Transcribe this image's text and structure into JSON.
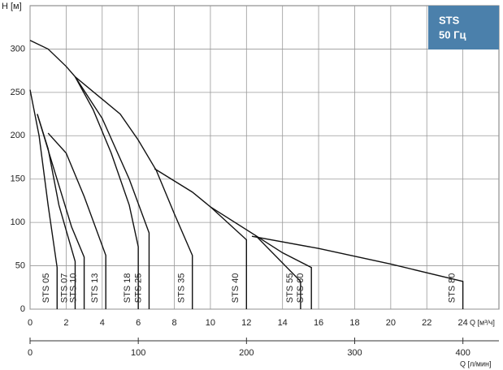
{
  "chart_data": {
    "type": "line",
    "y_label": "H [м]",
    "x_label": "Q [м³/ч]",
    "x2_label": "Q [л/мин]",
    "badge": [
      "STS",
      "50 Гц"
    ],
    "badge_color": "#4b80ab",
    "grid": true,
    "xlim": [
      0,
      26
    ],
    "xticks": [
      0,
      2,
      4,
      6,
      8,
      10,
      12,
      14,
      16,
      18,
      20,
      22,
      24
    ],
    "ylim": [
      0,
      350
    ],
    "yticks": [
      0,
      50,
      100,
      150,
      200,
      250,
      300
    ],
    "x2lim": [
      0,
      433.3
    ],
    "x2ticks": [
      0,
      100,
      200,
      300,
      400
    ],
    "series": [
      {
        "name": "STS 05",
        "color": "#111111",
        "x": [
          0,
          0.5,
          1.0,
          1.5,
          1.5
        ],
        "values": [
          253,
          200,
          120,
          48,
          0
        ]
      },
      {
        "name": "STS 07",
        "color": "#111111",
        "x": [
          0.4,
          1.0,
          1.6,
          2.5,
          2.5
        ],
        "values": [
          225,
          185,
          120,
          55,
          0
        ]
      },
      {
        "name": "STS 10",
        "color": "#111111",
        "x": [
          0.4,
          1.2,
          2.3,
          3.0,
          3.0
        ],
        "values": [
          225,
          170,
          95,
          60,
          0
        ]
      },
      {
        "name": "STS 13",
        "color": "#111111",
        "x": [
          1.0,
          2.0,
          3.0,
          4.2,
          4.2
        ],
        "values": [
          203,
          180,
          130,
          62,
          0
        ]
      },
      {
        "name": "STS 18",
        "color": "#111111",
        "x": [
          2.5,
          3.5,
          4.5,
          5.5,
          6.0,
          6.0
        ],
        "values": [
          268,
          230,
          180,
          120,
          72,
          0
        ]
      },
      {
        "name": "STS 25",
        "color": "#111111",
        "x": [
          2.5,
          4.0,
          5.5,
          6.6,
          6.6
        ],
        "values": [
          268,
          220,
          150,
          88,
          0
        ]
      },
      {
        "name": "STS 35",
        "color": "#111111",
        "x": [
          0,
          1.0,
          2.0,
          2.5,
          5.0,
          6.0,
          7.0,
          8.0,
          9.0,
          9.0
        ],
        "values": [
          310,
          300,
          280,
          268,
          225,
          195,
          160,
          110,
          62,
          0
        ]
      },
      {
        "name": "STS 40",
        "color": "#111111",
        "x": [
          6.9,
          9.0,
          10.0,
          12.0,
          12.0
        ],
        "values": [
          162,
          135,
          118,
          80,
          0
        ]
      },
      {
        "name": "STS 55",
        "color": "#111111",
        "x": [
          10.0,
          12.5,
          15.0,
          15.0
        ],
        "values": [
          118,
          85,
          32,
          0
        ]
      },
      {
        "name": "STS 60",
        "color": "#111111",
        "x": [
          12.5,
          14.0,
          15.6,
          15.6
        ],
        "values": [
          85,
          65,
          48,
          0
        ]
      },
      {
        "name": "STS 80",
        "color": "#111111",
        "x": [
          12.3,
          16.0,
          20.0,
          24.0,
          24.0
        ],
        "values": [
          84,
          70,
          52,
          32,
          0
        ]
      }
    ]
  }
}
